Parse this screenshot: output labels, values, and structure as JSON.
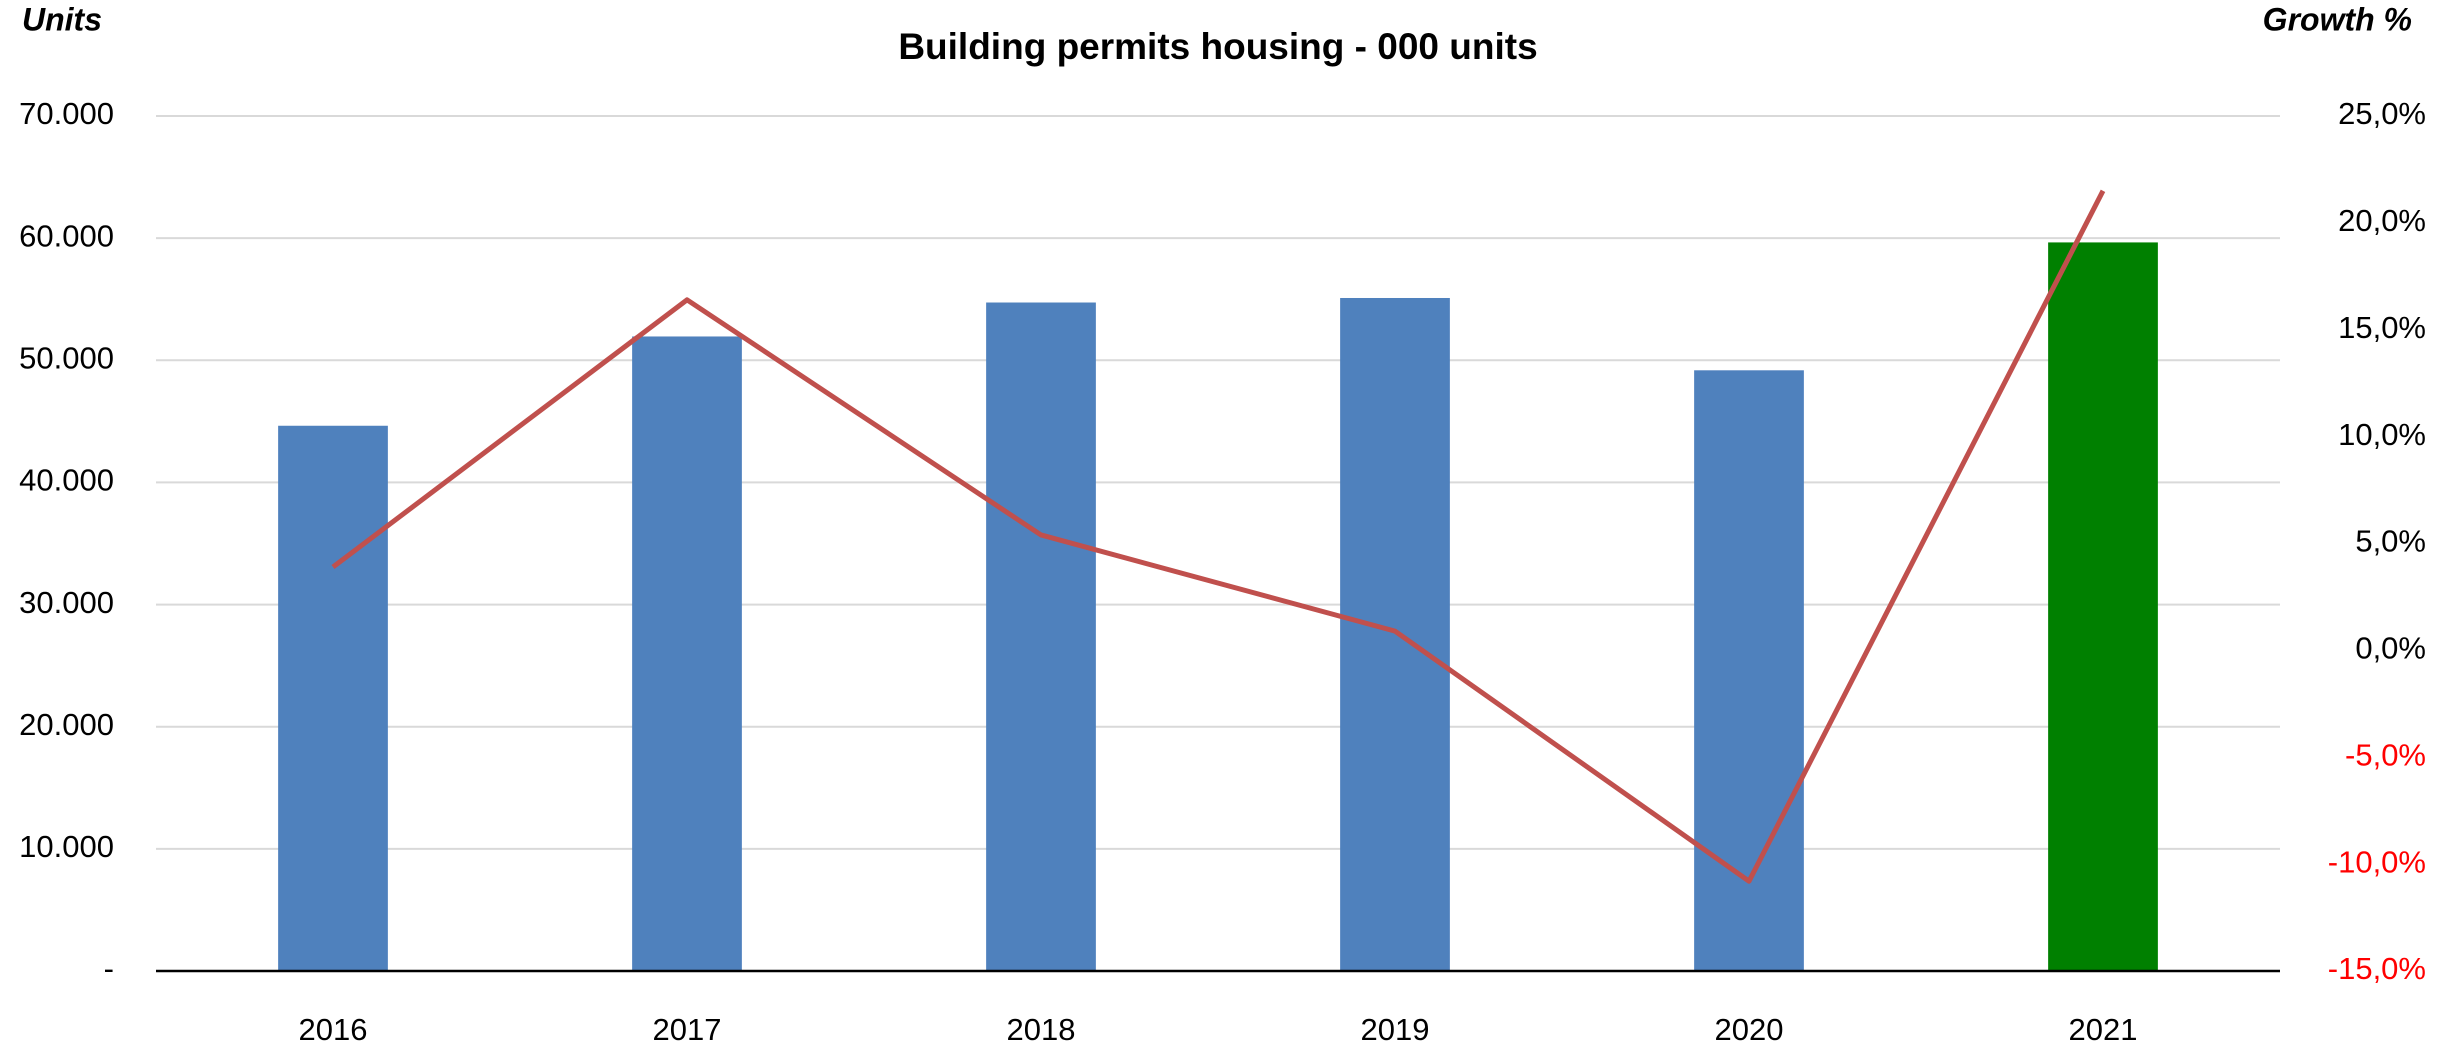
{
  "chart_data": {
    "type": "bar",
    "title": "Building permits housing - 000 units",
    "y_label": "Units",
    "y2_label": "Growth %",
    "categories": [
      "2016",
      "2017",
      "2018",
      "2019",
      "2020",
      "2021"
    ],
    "series": [
      {
        "type": "bar",
        "color": "#4f81bd",
        "colors": [
          "#4f81bd",
          "#4f81bd",
          "#4f81bd",
          "#4f81bd",
          "#4f81bd",
          "#008000"
        ],
        "values": [
          44640,
          51950,
          54730,
          55100,
          49180,
          59650
        ]
      },
      {
        "type": "line",
        "axis": "y2",
        "color": "#c0504d",
        "values": [
          3.9,
          16.4,
          5.4,
          0.9,
          -10.8,
          21.5
        ]
      }
    ],
    "ylim": [
      0,
      70000
    ],
    "yticks": [
      {
        "value": 0,
        "label": "-"
      },
      {
        "value": 10000,
        "label": "10.000"
      },
      {
        "value": 20000,
        "label": "20.000"
      },
      {
        "value": 30000,
        "label": "30.000"
      },
      {
        "value": 40000,
        "label": "40.000"
      },
      {
        "value": 50000,
        "label": "50.000"
      },
      {
        "value": 60000,
        "label": "60.000"
      },
      {
        "value": 70000,
        "label": "70.000"
      }
    ],
    "y2lim": [
      -15,
      25
    ],
    "y2ticks": [
      {
        "value": -15,
        "label": "-15,0%"
      },
      {
        "value": -10,
        "label": "-10,0%"
      },
      {
        "value": -5,
        "label": "-5,0%"
      },
      {
        "value": 0,
        "label": "0,0%"
      },
      {
        "value": 5,
        "label": "5,0%"
      },
      {
        "value": 10,
        "label": "10,0%"
      },
      {
        "value": 15,
        "label": "15,0%"
      },
      {
        "value": 20,
        "label": "20,0%"
      },
      {
        "value": 25,
        "label": "25,0%"
      }
    ],
    "negative_tick_color": "#ff0000",
    "grid": true
  }
}
